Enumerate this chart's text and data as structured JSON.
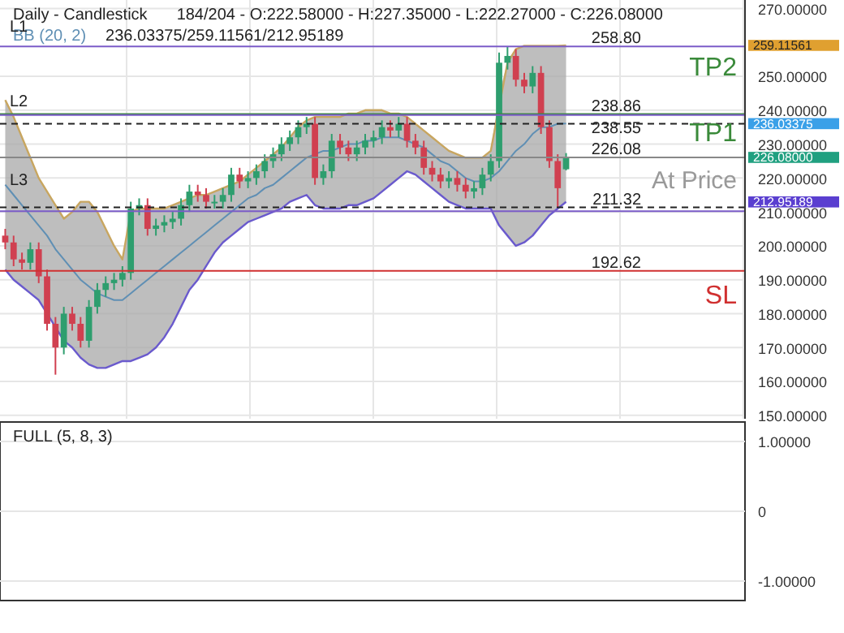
{
  "chart_data": [
    {
      "type": "candlestick",
      "title": "Daily - Candlestick",
      "subtitle": "184/204 - O:222.58000 - H:227.35000 - L:222.27000 - C:226.08000",
      "categories": [
        null,
        null,
        null,
        null,
        null,
        null,
        null,
        null,
        null,
        null,
        null,
        null,
        null,
        null,
        null,
        null,
        null,
        null,
        null,
        null,
        null,
        null,
        null,
        null,
        null,
        null,
        null,
        null,
        null,
        null,
        null,
        null,
        null,
        null,
        null,
        null,
        null,
        null,
        null,
        null,
        null,
        null,
        null,
        null,
        null,
        null,
        null,
        null,
        null,
        null,
        null,
        null,
        null,
        null,
        null,
        null,
        null,
        null,
        null,
        null,
        null,
        null,
        null,
        null,
        null,
        null,
        null,
        null
      ],
      "ohlc": [
        [
          203,
          205,
          199,
          201
        ],
        [
          201,
          203,
          194,
          196
        ],
        [
          196,
          198,
          193,
          195
        ],
        [
          195,
          201,
          193,
          199
        ],
        [
          199,
          201,
          189,
          191
        ],
        [
          191,
          193,
          175,
          177
        ],
        [
          177,
          179,
          162,
          170
        ],
        [
          170,
          182,
          168,
          180
        ],
        [
          180,
          182,
          175,
          177
        ],
        [
          177,
          179,
          170,
          172
        ],
        [
          172,
          184,
          170,
          182
        ],
        [
          182,
          189,
          180,
          187
        ],
        [
          187,
          191,
          185,
          189
        ],
        [
          189,
          192,
          187,
          190
        ],
        [
          190,
          194,
          188,
          192
        ],
        [
          192,
          213,
          190,
          211
        ],
        [
          211,
          214,
          209,
          212
        ],
        [
          212,
          214,
          203,
          205
        ],
        [
          205,
          208,
          203,
          206
        ],
        [
          206,
          209,
          204,
          207
        ],
        [
          207,
          210,
          205,
          208
        ],
        [
          208,
          214,
          206,
          212
        ],
        [
          212,
          218,
          210,
          216
        ],
        [
          216,
          218,
          213,
          215
        ],
        [
          215,
          217,
          211,
          213
        ],
        [
          213,
          215,
          211,
          213
        ],
        [
          213,
          217,
          211,
          215
        ],
        [
          215,
          223,
          213,
          221
        ],
        [
          221,
          223,
          217,
          219
        ],
        [
          219,
          222,
          217,
          220
        ],
        [
          220,
          224,
          218,
          222
        ],
        [
          222,
          227,
          220,
          225
        ],
        [
          225,
          229,
          223,
          227
        ],
        [
          227,
          232,
          225,
          230
        ],
        [
          230,
          234,
          228,
          232
        ],
        [
          232,
          237,
          230,
          235
        ],
        [
          235,
          238,
          233,
          236
        ],
        [
          236,
          238,
          218,
          220
        ],
        [
          220,
          224,
          218,
          222
        ],
        [
          222,
          233,
          220,
          231
        ],
        [
          231,
          233,
          227,
          229
        ],
        [
          229,
          231,
          225,
          227
        ],
        [
          227,
          231,
          225,
          229
        ],
        [
          229,
          233,
          227,
          231
        ],
        [
          231,
          234,
          229,
          232
        ],
        [
          232,
          237,
          230,
          235
        ],
        [
          235,
          237,
          232,
          234
        ],
        [
          234,
          238,
          232,
          236
        ],
        [
          236,
          238,
          229,
          231
        ],
        [
          231,
          233,
          227,
          229
        ],
        [
          229,
          231,
          221,
          223
        ],
        [
          223,
          225,
          219,
          221
        ],
        [
          221,
          223,
          217,
          219
        ],
        [
          219,
          222,
          217,
          220
        ],
        [
          220,
          222,
          216,
          218
        ],
        [
          218,
          220,
          214,
          216
        ],
        [
          216,
          219,
          214,
          217
        ],
        [
          217,
          223,
          215,
          221
        ],
        [
          221,
          227,
          219,
          225
        ],
        [
          225,
          257,
          223,
          254
        ],
        [
          254,
          258.8,
          252,
          256
        ],
        [
          256,
          258,
          247,
          249
        ],
        [
          249,
          251,
          245,
          247
        ],
        [
          247,
          253,
          245,
          251
        ],
        [
          251,
          253,
          233,
          235
        ],
        [
          235,
          237,
          223,
          225
        ],
        [
          225,
          227,
          211.32,
          217
        ],
        [
          222.58,
          227.35,
          222.27,
          226.08
        ]
      ],
      "series": [
        {
          "name": "BB (20, 2)",
          "type": "line",
          "color": "#5f8fb4",
          "values": [
            218,
            215,
            212,
            209,
            206,
            203,
            199,
            196,
            193,
            190,
            188,
            186,
            185,
            184,
            184,
            186,
            188,
            190,
            192,
            194,
            196,
            198,
            200,
            202,
            204,
            206,
            208,
            210,
            212,
            214,
            215,
            217,
            218,
            220,
            222,
            224,
            226,
            227,
            228,
            228,
            229,
            230,
            230,
            231,
            231,
            232,
            232,
            232,
            231,
            230,
            229,
            227,
            225,
            224,
            222,
            220,
            219,
            219,
            220,
            222,
            225,
            228,
            230,
            233,
            235,
            235,
            236,
            236.03375
          ],
          "upper": [
            243,
            238,
            232,
            226,
            220,
            216,
            212,
            208,
            210,
            213,
            213,
            210,
            205,
            200,
            196,
            210,
            211,
            211,
            211,
            211,
            212,
            213,
            214,
            215,
            215,
            216,
            217,
            218,
            219,
            221,
            223,
            225,
            227,
            229,
            232,
            235,
            237,
            238,
            238,
            238,
            238,
            239,
            239,
            240,
            240,
            240,
            239,
            239,
            238,
            236,
            234,
            232,
            230,
            228,
            227,
            226,
            226,
            226,
            228,
            245,
            254,
            258,
            259,
            259,
            259,
            259,
            259,
            259.11561
          ],
          "lower": [
            193,
            190,
            188,
            186,
            184,
            180,
            176,
            172,
            170,
            167,
            165,
            164,
            164,
            165,
            166,
            166,
            167,
            168,
            170,
            173,
            177,
            182,
            187,
            190,
            194,
            198,
            201,
            203,
            205,
            207,
            208,
            209,
            210,
            211,
            213,
            214,
            215,
            212,
            211,
            211,
            211,
            212,
            212,
            213,
            214,
            216,
            218,
            220,
            222,
            221,
            219,
            217,
            215,
            213,
            212,
            211,
            211,
            211,
            211,
            206,
            203,
            200,
            201,
            203,
            206,
            209,
            211,
            212.95189
          ]
        },
        {
          "type": "line",
          "color": "#c8a660",
          "values": [
            243,
            238,
            232,
            226,
            220,
            216,
            212,
            208,
            210,
            213,
            213,
            210,
            205,
            200,
            196,
            210,
            211,
            211,
            211,
            211,
            212,
            213,
            214,
            215,
            215,
            216,
            217,
            218,
            219,
            221,
            223,
            225,
            227,
            229,
            232,
            235,
            237,
            238,
            238,
            238,
            238,
            239,
            239,
            240,
            240,
            240,
            239,
            239,
            238,
            236,
            234,
            232,
            230,
            228,
            227,
            226,
            226,
            226,
            228,
            null,
            254,
            258,
            259,
            259,
            259,
            259,
            259,
            259.11561
          ]
        },
        {
          "type": "line",
          "color": "#6a5acd",
          "values": [
            193,
            190,
            188,
            186,
            184,
            180,
            176,
            172,
            170,
            167,
            165,
            164,
            164,
            165,
            166,
            166,
            167,
            168,
            170,
            173,
            177,
            182,
            187,
            190,
            194,
            198,
            201,
            203,
            205,
            207,
            208,
            209,
            210,
            211,
            213,
            214,
            215,
            212,
            211,
            211,
            211,
            212,
            212,
            213,
            214,
            216,
            218,
            220,
            222,
            221,
            219,
            217,
            215,
            213,
            212,
            211,
            211,
            211,
            211,
            206,
            203,
            200,
            201,
            203,
            206,
            209,
            211,
            212.95189
          ]
        }
      ],
      "ylim": [
        149,
        272.5
      ],
      "yticks": [
        {
          "value": 150,
          "label": "150.00000"
        },
        {
          "value": 160,
          "label": "160.00000"
        },
        {
          "value": 170,
          "label": "170.00000"
        },
        {
          "value": 180,
          "label": "180.00000"
        },
        {
          "value": 190,
          "label": "190.00000"
        },
        {
          "value": 200,
          "label": "200.00000"
        },
        {
          "value": 210,
          "label": "210.00000"
        },
        {
          "value": 220,
          "label": "220.00000"
        },
        {
          "value": 230,
          "label": "230.00000"
        },
        {
          "value": 240,
          "label": "240.00000"
        },
        {
          "value": 250,
          "label": "250.00000"
        },
        {
          "value": 270,
          "label": "270.00000"
        }
      ],
      "ref_lines": [
        {
          "axis": "y",
          "value": 258.8,
          "label": "258.80",
          "color": "#7b5cc8",
          "line_style": "solid"
        },
        {
          "axis": "y",
          "value": 238.86,
          "label": "238.86",
          "color": "#3a8a3a",
          "line_style": "solid"
        },
        {
          "axis": "y",
          "value": 238.55,
          "label": "238.55",
          "color": "#7b5cc8",
          "line_style": "solid"
        },
        {
          "axis": "y",
          "value": 236,
          "color": "#222222",
          "line_style": "dashed"
        },
        {
          "axis": "y",
          "value": 226.08,
          "label": "226.08",
          "color": "#888888",
          "line_style": "solid"
        },
        {
          "axis": "y",
          "value": 211.32,
          "label": "211.32",
          "color": "#222222",
          "line_style": "dashed"
        },
        {
          "axis": "y",
          "value": 210.2,
          "color": "#7b5cc8",
          "line_style": "solid"
        },
        {
          "axis": "y",
          "value": 192.62,
          "label": "192.62",
          "color": "#d03030",
          "line_style": "solid"
        }
      ],
      "annotations": [
        "236.03375/259.11561/212.95189",
        "L1",
        "L2",
        "L3",
        "TP2",
        "TP1",
        "At Price",
        "SL",
        "259.11561",
        "236.03375",
        "226.08000",
        "212.95189"
      ],
      "grid": true,
      "legend": false
    },
    {
      "type": "other",
      "title": "FULL (5, 8, 3)",
      "annotations": [
        "1.00000",
        "0",
        "-1.00000"
      ]
    }
  ]
}
